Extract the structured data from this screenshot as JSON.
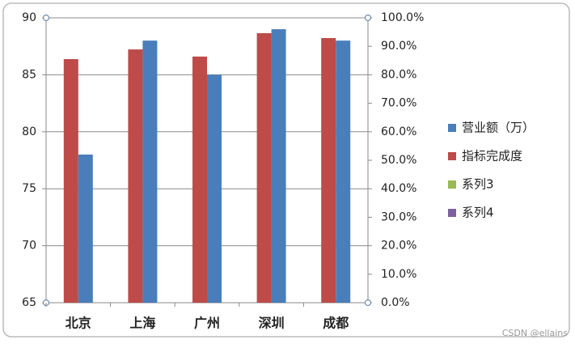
{
  "chart_data": {
    "type": "bar",
    "categories": [
      "北京",
      "上海",
      "广州",
      "深圳",
      "成都"
    ],
    "series": [
      {
        "name": "营业额（万）",
        "color": "#4a7ebb",
        "values": [
          78,
          88,
          85,
          89,
          88
        ]
      },
      {
        "name": "指标完成度",
        "color": "#be4b48",
        "axis": "y2",
        "values": [
          85.5,
          88.9,
          86.4,
          94.6,
          92.9
        ]
      },
      {
        "name": "系列3",
        "color": "#98b954",
        "values": [
          null,
          null,
          null,
          null,
          null
        ]
      },
      {
        "name": "系列4",
        "color": "#7d60a0",
        "values": [
          null,
          null,
          null,
          null,
          null
        ]
      }
    ],
    "ylim": [
      65,
      90
    ],
    "yticks": [
      65,
      70,
      75,
      80,
      85,
      90
    ],
    "y2lim": [
      0,
      100
    ],
    "y2ticks": [
      {
        "value": 0,
        "label": "0.0%"
      },
      {
        "value": 10,
        "label": "10.0%"
      },
      {
        "value": 20,
        "label": "20.0%"
      },
      {
        "value": 30,
        "label": "30.0%"
      },
      {
        "value": 40,
        "label": "40.0%"
      },
      {
        "value": 50,
        "label": "50.0%"
      },
      {
        "value": 60,
        "label": "60.0%"
      },
      {
        "value": 70,
        "label": "70.0%"
      },
      {
        "value": 80,
        "label": "80.0%"
      },
      {
        "value": 90,
        "label": "90.0%"
      },
      {
        "value": 100,
        "label": "100.0%"
      }
    ],
    "grid": true,
    "legend": "right",
    "watermark": "CSDN @ellains"
  }
}
